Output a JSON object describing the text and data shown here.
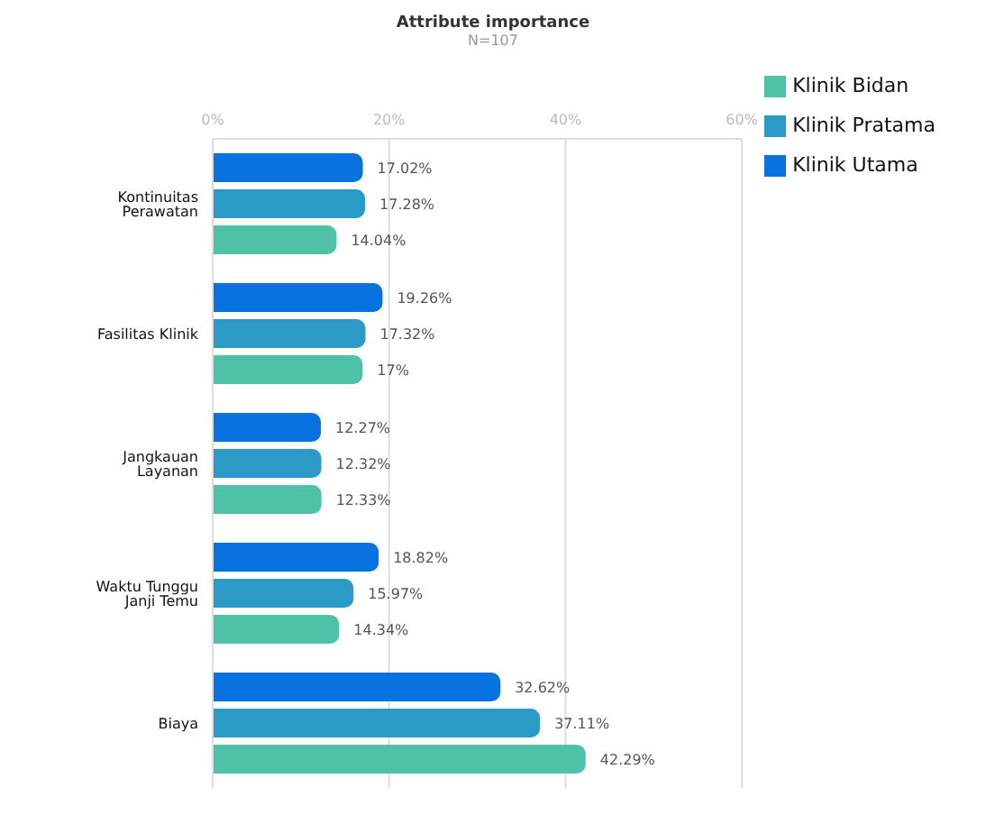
{
  "chart_data": {
    "type": "bar",
    "orientation": "horizontal",
    "title": "Attribute importance",
    "subtitle": "N=107",
    "categories": [
      "Kontinuitas Perawatan",
      "Fasilitas Klinik",
      "Jangkauan Layanan",
      "Waktu Tunggu Janji Temu",
      "Biaya"
    ],
    "series": [
      {
        "name": "Klinik Utama",
        "color": "#0873e0",
        "values": [
          17.02,
          19.26,
          12.27,
          18.82,
          32.62
        ],
        "value_labels": [
          "17.02%",
          "19.26%",
          "12.27%",
          "18.82%",
          "32.62%"
        ]
      },
      {
        "name": "Klinik Pratama",
        "color": "#2b9ac6",
        "values": [
          17.28,
          17.32,
          12.32,
          15.97,
          37.11
        ],
        "value_labels": [
          "17.28%",
          "17.32%",
          "12.32%",
          "15.97%",
          "37.11%"
        ]
      },
      {
        "name": "Klinik Bidan",
        "color": "#4dc2a6",
        "values": [
          14.04,
          17,
          12.33,
          14.34,
          42.29
        ],
        "value_labels": [
          "14.04%",
          "17%",
          "12.33%",
          "14.34%",
          "42.29%"
        ]
      }
    ],
    "xlim": [
      0,
      60
    ],
    "xticks": [
      {
        "value": 0,
        "label": "0%"
      },
      {
        "value": 20,
        "label": "20%"
      },
      {
        "value": 40,
        "label": "40%"
      },
      {
        "value": 60,
        "label": "60%"
      }
    ],
    "grid": "x",
    "legend": "top right"
  }
}
